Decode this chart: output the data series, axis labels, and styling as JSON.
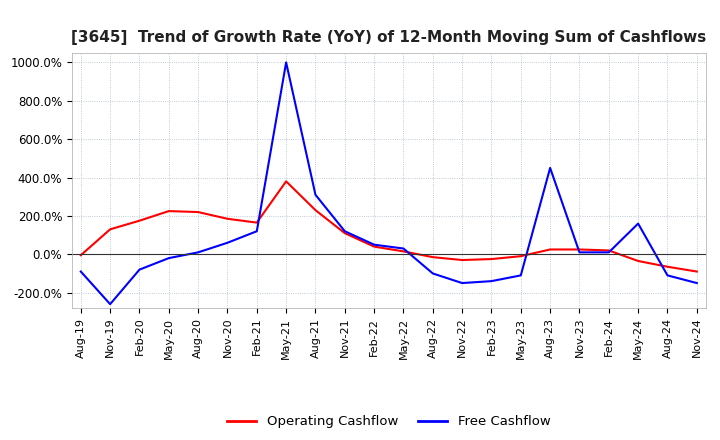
{
  "title": "[3645]  Trend of Growth Rate (YoY) of 12-Month Moving Sum of Cashflows",
  "title_fontsize": 11,
  "ylim": [
    -280,
    1050
  ],
  "yticks": [
    -200,
    0,
    200,
    400,
    600,
    800,
    1000
  ],
  "ytick_labels": [
    "-200.0%",
    "0.0%",
    "200.0%",
    "400.0%",
    "600.0%",
    "800.0%",
    "1000.0%"
  ],
  "background_color": "#ffffff",
  "grid_color": "#aabbcc",
  "legend_entries": [
    "Operating Cashflow",
    "Free Cashflow"
  ],
  "legend_colors": [
    "#ff0000",
    "#0000ff"
  ],
  "x_labels": [
    "Aug-19",
    "Nov-19",
    "Feb-20",
    "May-20",
    "Aug-20",
    "Nov-20",
    "Feb-21",
    "May-21",
    "Aug-21",
    "Nov-21",
    "Feb-22",
    "May-22",
    "Aug-22",
    "Nov-22",
    "Feb-23",
    "May-23",
    "Aug-23",
    "Nov-23",
    "Feb-24",
    "May-24",
    "Aug-24",
    "Nov-24"
  ],
  "operating_cashflow": [
    -5,
    130,
    175,
    225,
    220,
    185,
    165,
    380,
    230,
    110,
    40,
    15,
    -15,
    -30,
    -25,
    -10,
    25,
    25,
    20,
    -35,
    -65,
    -90
  ],
  "free_cashflow": [
    -90,
    -260,
    -80,
    -20,
    10,
    60,
    120,
    1000,
    310,
    120,
    50,
    30,
    -100,
    -150,
    -140,
    -110,
    450,
    10,
    10,
    160,
    -110,
    -150
  ]
}
